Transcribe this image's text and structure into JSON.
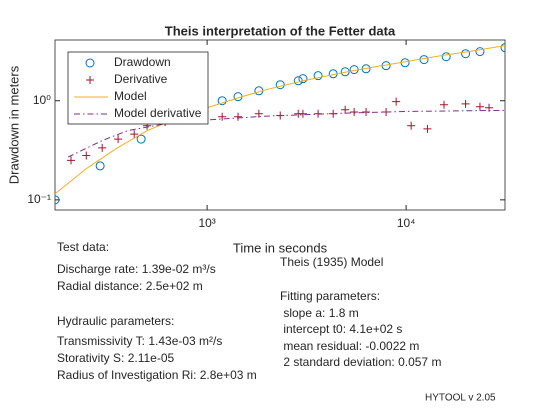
{
  "chart_data": {
    "type": "line",
    "title": "Theis interpretation of the Fetter data",
    "xlabel": "Time in seconds",
    "ylabel": "Drawdown in meters",
    "xscale": "log",
    "yscale": "log",
    "xlim": [
      172,
      31400
    ],
    "ylim": [
      0.079,
      4.1
    ],
    "xticks": [
      {
        "value": 1000,
        "label": "10³"
      },
      {
        "value": 10000,
        "label": "10⁴"
      }
    ],
    "yticks": [
      {
        "value": 0.1,
        "label": "10⁻¹"
      },
      {
        "value": 1,
        "label": "10⁰"
      }
    ],
    "legend": "upper left",
    "series": [
      {
        "name": "Drawdown",
        "color": "#0072bd",
        "marker": "circle",
        "x": [
          172,
          290,
          466,
          1190,
          1430,
          1820,
          2330,
          2870,
          3030,
          3610,
          4300,
          4940,
          5480,
          6290,
          7930,
          9880,
          12300,
          15900,
          19900,
          23500,
          31400
        ],
        "values": [
          0.1,
          0.22,
          0.41,
          1.0,
          1.1,
          1.26,
          1.45,
          1.59,
          1.67,
          1.79,
          1.87,
          1.96,
          2.06,
          2.1,
          2.26,
          2.42,
          2.6,
          2.78,
          2.98,
          3.13,
          3.43
        ]
      },
      {
        "name": "Derivative",
        "color": "#a2142f",
        "marker": "plus",
        "x": [
          207,
          247,
          297,
          357,
          430,
          499,
          615,
          881,
          1190,
          1430,
          1820,
          2330,
          2870,
          3030,
          3610,
          4300,
          4940,
          5480,
          6290,
          7930,
          8910,
          10600,
          12800,
          15500,
          19900,
          23500,
          26100
        ],
        "values": [
          0.25,
          0.28,
          0.335,
          0.41,
          0.46,
          0.56,
          0.61,
          0.64,
          0.69,
          0.69,
          0.74,
          0.71,
          0.74,
          0.74,
          0.74,
          0.74,
          0.81,
          0.77,
          0.77,
          0.77,
          0.98,
          0.56,
          0.52,
          0.91,
          0.93,
          0.87,
          0.85
        ]
      },
      {
        "name": "Model",
        "color": "#edb120",
        "marker": "solid",
        "x": [
          172,
          250,
          350,
          500,
          700,
          1000,
          1500,
          2000,
          3000,
          5000,
          7000,
          10000,
          15000,
          20000,
          31400
        ],
        "values": [
          0.115,
          0.21,
          0.33,
          0.5,
          0.66,
          0.85,
          1.1,
          1.3,
          1.58,
          1.95,
          2.2,
          2.48,
          2.85,
          3.1,
          3.6
        ]
      },
      {
        "name": "Model derivative",
        "color": "#7e2f8e",
        "marker": "dashdot",
        "x": [
          200,
          300,
          400,
          600,
          1000,
          2000,
          5000,
          10000,
          31400
        ],
        "values": [
          0.27,
          0.4,
          0.5,
          0.58,
          0.64,
          0.7,
          0.75,
          0.78,
          0.8
        ]
      }
    ],
    "annotations": [
      "Test data:",
      "Discharge rate: 1.39e-02 m³/s",
      "Radial distance: 2.5e+02 m",
      "Hydraulic parameters:",
      "Transmissivity T: 1.43e-03 m²/s",
      "Storativity S: 2.11e-05",
      "Radius of Investigation Ri: 2.8e+03 m",
      "Theis (1935) Model",
      "Fitting parameters:",
      " slope a: 1.8 m",
      " intercept t0: 4.1e+02 s",
      " mean residual: -0.0022 m",
      " 2 standard deviation: 0.057 m",
      "HYTOOL v 2.05"
    ]
  }
}
